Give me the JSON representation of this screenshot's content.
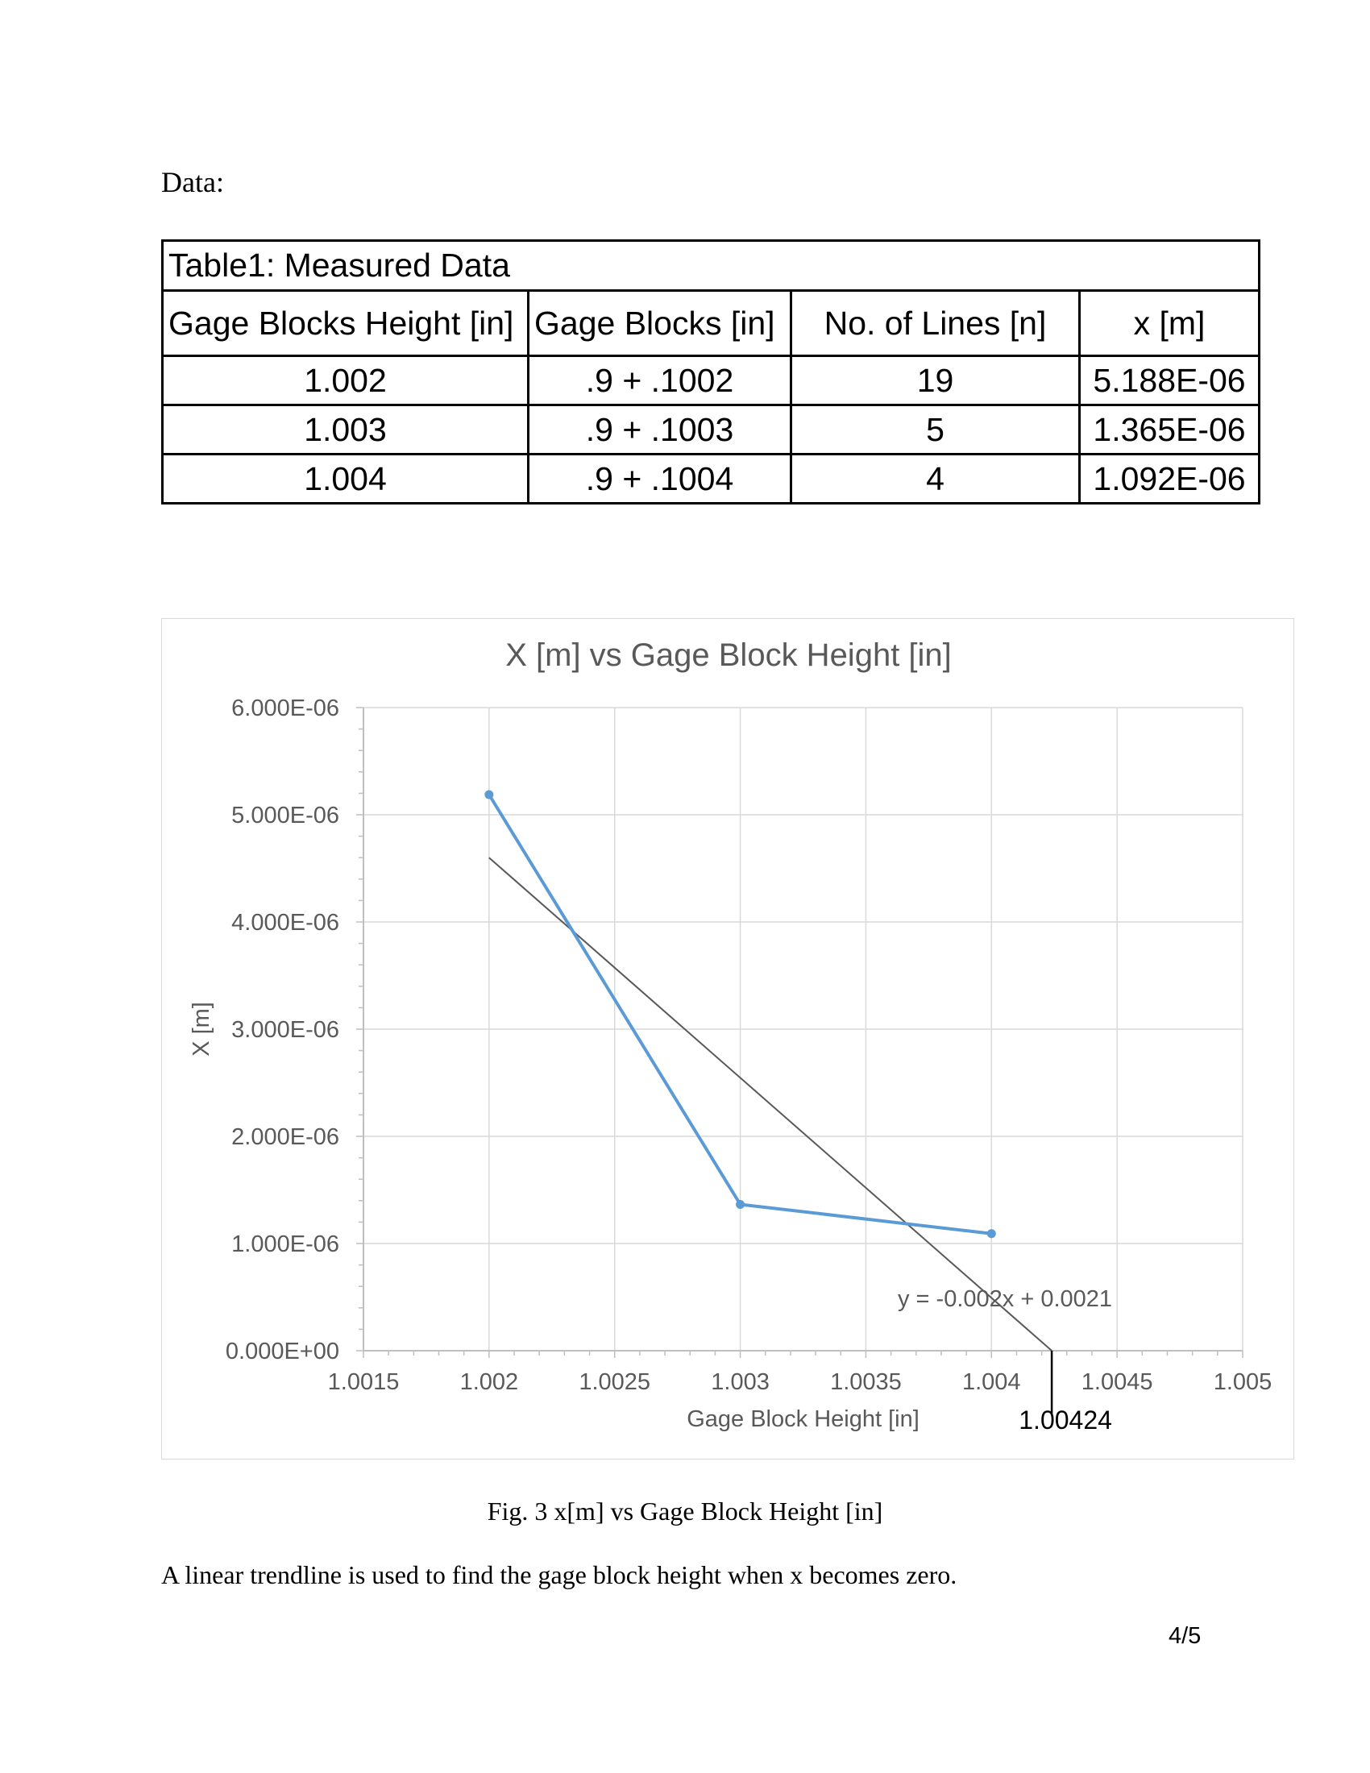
{
  "heading": "Data:",
  "table": {
    "caption": "Table1: Measured Data",
    "headers": [
      "Gage Blocks Height [in]",
      "Gage Blocks [in]",
      "No. of Lines [n]",
      "x [m]"
    ],
    "rows": [
      [
        "1.002",
        ".9 + .1002",
        "19",
        "5.188E-06"
      ],
      [
        "1.003",
        ".9 + .1003",
        "5",
        "1.365E-06"
      ],
      [
        "1.004",
        ".9 + .1004",
        "4",
        "1.092E-06"
      ]
    ]
  },
  "chart_data": {
    "type": "line",
    "title": "X [m] vs Gage Block Height [in]",
    "xlabel": "Gage Block Height [in]",
    "ylabel": "X [m]",
    "xlim": [
      1.0015,
      1.005
    ],
    "ylim": [
      0,
      6e-06
    ],
    "x_ticks": [
      "1.0015",
      "1.002",
      "1.0025",
      "1.003",
      "1.0035",
      "1.004",
      "1.0045",
      "1.005"
    ],
    "y_ticks": [
      "0.000E+00",
      "1.000E-06",
      "2.000E-06",
      "3.000E-06",
      "4.000E-06",
      "5.000E-06",
      "6.000E-06"
    ],
    "grid": true,
    "series": [
      {
        "x": [
          1.002,
          1.003,
          1.004
        ],
        "y": [
          5.188e-06,
          1.365e-06,
          1.092e-06
        ],
        "color": "#5b9bd5"
      }
    ],
    "trendline": {
      "equation": "y = -0.002x + 0.0021",
      "x": [
        1.002,
        1.00424
      ],
      "y": [
        4.6e-06,
        0
      ],
      "color": "#595959"
    },
    "annotation": {
      "label": "1.00424",
      "x": 1.00424
    }
  },
  "figure_caption": "Fig. 3 x[m] vs Gage Block Height [in]",
  "body_text": "A linear trendline is used to find the gage block height when x becomes zero.",
  "page_number": "4/5"
}
